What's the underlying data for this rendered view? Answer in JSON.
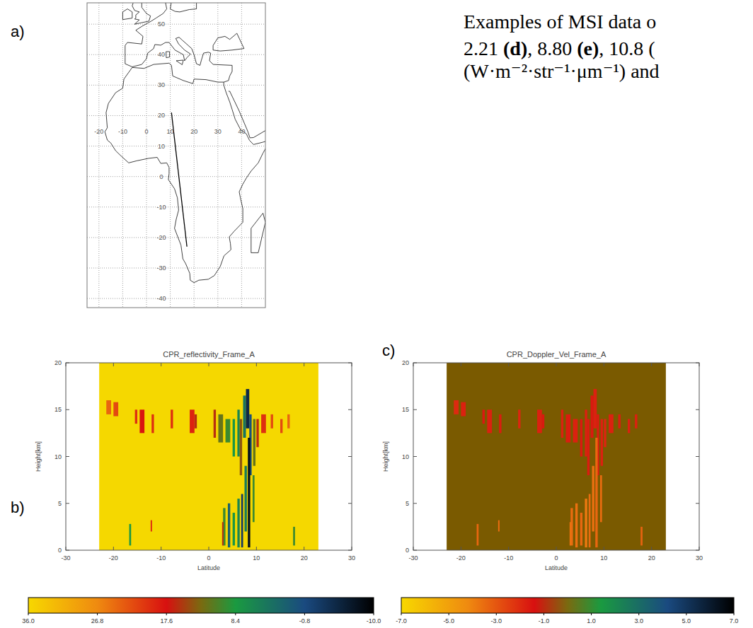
{
  "caption": [
    [
      {
        "text": "Examples of MSI data o",
        "bold": false
      }
    ],
    [
      {
        "text": "2.21 ",
        "bold": false
      },
      {
        "text": "(d)",
        "bold": true
      },
      {
        "text": ", 8.80 ",
        "bold": false
      },
      {
        "text": "(e)",
        "bold": true
      },
      {
        "text": ", 10.8 (",
        "bold": false
      }
    ],
    [
      {
        "text": "(W·m⁻²·str⁻¹·μm⁻¹) and",
        "bold": false
      }
    ]
  ],
  "panel_labels": [
    "a)",
    "b)",
    "c)"
  ],
  "map": {
    "lonlim": [
      -25,
      50
    ],
    "latlim": [
      -43,
      57
    ],
    "lon_ticks": [
      -20,
      -10,
      0,
      10,
      20,
      30,
      40
    ],
    "lat_ticks": [
      50,
      40,
      30,
      20,
      10,
      0,
      -10,
      -20,
      -30,
      -40
    ],
    "track": {
      "lon": [
        10.5,
        17
      ],
      "lat": [
        21,
        -23
      ]
    }
  },
  "chart_data": [
    {
      "type": "heatmap",
      "title": "CPR_reflectivity_Frame_A",
      "xlabel": "Latitude",
      "ylabel": "Height[km]",
      "xlim": [
        -30,
        30
      ],
      "ylim": [
        0,
        20
      ],
      "xticks": [
        -30,
        -20,
        -10,
        0,
        10,
        20,
        30
      ],
      "yticks": [
        0,
        5,
        10,
        15,
        20
      ],
      "frame_lat": [
        -23,
        23
      ],
      "color": "#f5d800",
      "cells": [
        [
          -21.5,
          -20.5,
          14.5,
          16,
          24
        ],
        [
          -20,
          -19,
          14.3,
          15.8,
          22
        ],
        [
          -15.5,
          -15,
          13.5,
          15,
          20
        ],
        [
          -14.5,
          -13.5,
          12.5,
          15,
          18
        ],
        [
          -12,
          -11.5,
          12.5,
          14.5,
          20
        ],
        [
          -8,
          -7.5,
          13,
          15,
          20
        ],
        [
          -4,
          -3,
          12.5,
          15,
          19
        ],
        [
          -3,
          -2.5,
          13,
          14.5,
          16
        ],
        [
          1,
          1.5,
          12,
          15,
          16
        ],
        [
          2,
          3,
          11.5,
          14.5,
          12
        ],
        [
          3.5,
          4.5,
          11.5,
          14,
          10
        ],
        [
          5,
          5.5,
          10,
          14,
          8
        ],
        [
          6,
          6.5,
          10,
          15,
          6
        ],
        [
          6.5,
          7,
          8,
          14,
          14
        ],
        [
          7.2,
          7.8,
          12,
          16.5,
          4
        ],
        [
          7.8,
          8.5,
          13,
          17.2,
          -5
        ],
        [
          8.5,
          9,
          8,
          14.5,
          0
        ],
        [
          9.3,
          9.8,
          9,
          14,
          12
        ],
        [
          10,
          10.5,
          11,
          14,
          16
        ],
        [
          11,
          12,
          12.5,
          14.5,
          20
        ],
        [
          13,
          13.5,
          13,
          14.5,
          22
        ],
        [
          15,
          15.5,
          12.5,
          14,
          22
        ],
        [
          16.5,
          17,
          13,
          14.5,
          24
        ],
        [
          8.2,
          8.7,
          0.3,
          12,
          -8
        ],
        [
          7.5,
          8,
          2,
          9,
          5
        ],
        [
          6.8,
          7.2,
          0.3,
          6,
          -3
        ],
        [
          6,
          6.5,
          0.3,
          5.5,
          6
        ],
        [
          5,
          5.5,
          0.5,
          4,
          8
        ],
        [
          4,
          4.5,
          0.3,
          5,
          2
        ],
        [
          3,
          3.5,
          0.5,
          4.5,
          10
        ],
        [
          2.8,
          3.1,
          0.5,
          3,
          16
        ],
        [
          -16.7,
          -16.3,
          0.5,
          2.8,
          8
        ],
        [
          -12.2,
          -11.9,
          2,
          3.2,
          20
        ],
        [
          17.7,
          18.1,
          0.5,
          2.5,
          10
        ],
        [
          9.2,
          9.6,
          3,
          8,
          10
        ]
      ],
      "colorbar": {
        "range": [
          36,
          -10
        ],
        "ticks": [
          {
            "value": 36,
            "label": "36.0"
          },
          {
            "value": 26.8,
            "label": "26.8"
          },
          {
            "value": 17.6,
            "label": "17.6"
          },
          {
            "value": 8.4,
            "label": "8.4"
          },
          {
            "value": -0.8,
            "label": "-0.8"
          },
          {
            "value": -10,
            "label": "-10.0"
          }
        ]
      }
    },
    {
      "type": "heatmap",
      "title": "CPR_Doppler_Vel_Frame_A",
      "xlabel": "Latitude",
      "ylabel": "Height[km]",
      "xlim": [
        -30,
        30
      ],
      "ylim": [
        0,
        20
      ],
      "xticks": [
        -30,
        -20,
        -10,
        0,
        10,
        20,
        30
      ],
      "yticks": [
        0,
        5,
        10,
        15,
        20
      ],
      "frame_lat": [
        -23,
        23
      ],
      "color": "#7a5a00",
      "cells": [
        [
          -21.5,
          -20.5,
          14.5,
          16,
          -2
        ],
        [
          -20,
          -19,
          14.3,
          15.8,
          -1.8
        ],
        [
          -15.5,
          -15,
          13.5,
          15,
          -1.6
        ],
        [
          -14.5,
          -13.5,
          12.5,
          15,
          -1.8
        ],
        [
          -12,
          -11.5,
          12.5,
          14.5,
          -1.7
        ],
        [
          -8,
          -7.5,
          13,
          15,
          -1.9
        ],
        [
          -4,
          -3,
          12.5,
          15,
          -1.8
        ],
        [
          -3,
          -2.5,
          13,
          14.5,
          -1.6
        ],
        [
          1,
          1.5,
          12,
          15,
          -1.8
        ],
        [
          2,
          3,
          11.5,
          14.5,
          -1.7
        ],
        [
          3.5,
          4.5,
          11.5,
          14,
          -1.8
        ],
        [
          5,
          5.5,
          10,
          14,
          -1.6
        ],
        [
          6,
          6.5,
          10,
          15,
          -1.8
        ],
        [
          6.5,
          7,
          8,
          14,
          -1.7
        ],
        [
          7.2,
          7.8,
          12,
          16.5,
          -1.6
        ],
        [
          7.8,
          8.5,
          13,
          17.2,
          -1.8
        ],
        [
          8.5,
          9,
          8,
          14.5,
          -1.7
        ],
        [
          9.3,
          9.8,
          9,
          14,
          -1.8
        ],
        [
          10,
          10.5,
          11,
          14,
          -1.9
        ],
        [
          11,
          12,
          12.5,
          14.5,
          -1.8
        ],
        [
          13,
          13.5,
          13,
          14.5,
          -1.7
        ],
        [
          15,
          15.5,
          12.5,
          14,
          -1.8
        ],
        [
          16.5,
          17,
          13,
          14.5,
          -1.8
        ],
        [
          8.2,
          8.7,
          0.3,
          12,
          -3.4
        ],
        [
          7.5,
          8,
          2,
          9,
          -3.6
        ],
        [
          6.8,
          7.2,
          0.3,
          6,
          -3.5
        ],
        [
          6,
          6.5,
          0.3,
          5.5,
          -3.8
        ],
        [
          5,
          5.5,
          0.5,
          4,
          -3.4
        ],
        [
          4,
          4.5,
          0.3,
          5,
          -3.6
        ],
        [
          3,
          3.5,
          0.5,
          4.5,
          -3.5
        ],
        [
          2.8,
          3.1,
          0.5,
          3,
          -3.7
        ],
        [
          -16.7,
          -16.3,
          0.5,
          2.8,
          -3.4
        ],
        [
          -12.2,
          -11.9,
          2,
          3.2,
          -3.5
        ],
        [
          17.7,
          18.1,
          0.5,
          2.5,
          -3.3
        ],
        [
          9.2,
          9.6,
          3,
          8,
          -3.5
        ]
      ],
      "colorbar": {
        "range": [
          -7,
          7
        ],
        "ticks": [
          {
            "value": -7,
            "label": "-7.0"
          },
          {
            "value": -5,
            "label": "-5.0"
          },
          {
            "value": -3,
            "label": "-3.0"
          },
          {
            "value": -1,
            "label": "-1.0"
          },
          {
            "value": 1,
            "label": "1.0"
          },
          {
            "value": 3,
            "label": "3.0"
          },
          {
            "value": 5,
            "label": "5.0"
          },
          {
            "value": 7,
            "label": "7.0"
          }
        ]
      }
    }
  ]
}
